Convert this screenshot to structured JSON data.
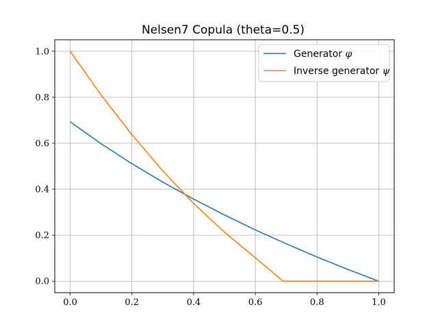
{
  "chart_data": {
    "type": "line",
    "title": "Nelsen7 Copula (theta=0.5)",
    "xlabel": "",
    "ylabel": "",
    "xlim": [
      -0.05,
      1.05
    ],
    "ylim": [
      -0.05,
      1.05
    ],
    "grid": true,
    "legend_position": "top-right",
    "x_ticks": [
      0.0,
      0.2,
      0.4,
      0.6,
      0.8,
      1.0
    ],
    "y_ticks": [
      0.0,
      0.2,
      0.4,
      0.6,
      0.8,
      1.0
    ],
    "x_tick_labels": [
      "0.0",
      "0.2",
      "0.4",
      "0.6",
      "0.8",
      "1.0"
    ],
    "y_tick_labels": [
      "0.0",
      "0.2",
      "0.4",
      "0.6",
      "0.8",
      "1.0"
    ],
    "series": [
      {
        "name": "Generator",
        "symbol": "φ",
        "color": "#1f77b4",
        "x": [
          0.0,
          0.1,
          0.2,
          0.3,
          0.4,
          0.5,
          0.6,
          0.7,
          0.8,
          0.9,
          1.0
        ],
        "y": [
          0.693,
          0.598,
          0.511,
          0.431,
          0.357,
          0.288,
          0.223,
          0.163,
          0.105,
          0.051,
          0.0
        ]
      },
      {
        "name": "Inverse generator",
        "symbol": "ψ",
        "color": "#ff7f0e",
        "x": [
          0.0,
          0.1,
          0.2,
          0.3,
          0.4,
          0.5,
          0.6,
          0.69,
          0.7,
          0.8,
          0.9,
          1.0
        ],
        "y": [
          1.0,
          0.81,
          0.637,
          0.48,
          0.338,
          0.213,
          0.102,
          0.0,
          0.0,
          0.0,
          0.0,
          0.0
        ]
      }
    ]
  }
}
